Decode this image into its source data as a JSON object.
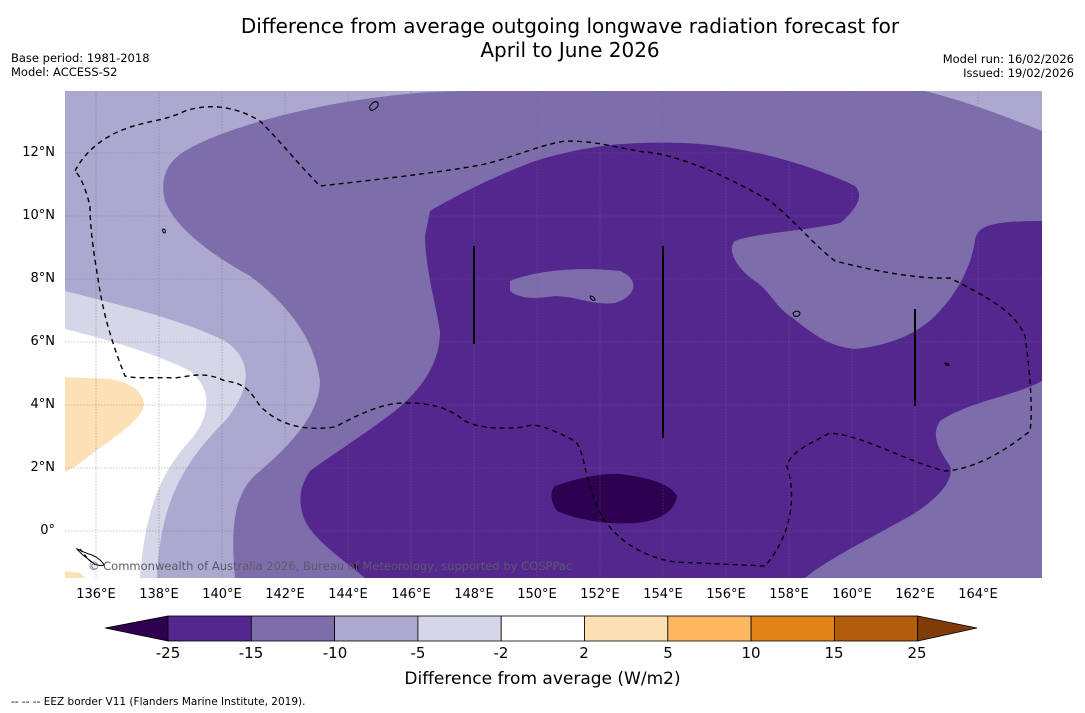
{
  "title_line1": "Difference from average outgoing longwave radiation forecast for",
  "title_line2": "April to June 2026",
  "meta_left": {
    "base_period": "Base period: 1981-2018",
    "model": "Model: ACCESS-S2"
  },
  "meta_right": {
    "model_run": "Model run: 16/02/2026",
    "issued": "Issued: 19/02/2026"
  },
  "axes": {
    "y_ticks": [
      "12°N",
      "10°N",
      "8°N",
      "6°N",
      "4°N",
      "2°N",
      "0°"
    ],
    "x_ticks": [
      "136°E",
      "138°E",
      "140°E",
      "142°E",
      "144°E",
      "146°E",
      "148°E",
      "150°E",
      "152°E",
      "154°E",
      "156°E",
      "158°E",
      "160°E",
      "162°E",
      "164°E"
    ]
  },
  "copyright": "© Commonwealth of Australia 2026, Bureau of Meteorology, supported by COSPPac",
  "legend": {
    "labels": [
      "-25",
      "-15",
      "-10",
      "-5",
      "-2",
      "2",
      "5",
      "10",
      "15",
      "25"
    ],
    "colors": {
      "lt_neg25": "#2d0050",
      "neg25_neg15": "#54278f",
      "neg15_neg10": "#7d6eab",
      "neg10_neg5": "#aca8cf",
      "neg5_neg2": "#d6d6e9",
      "neg2_2": "#ffffff",
      "2_5": "#fde0b6",
      "5_10": "#fdb761",
      "10_15": "#e08218",
      "15_25": "#b25c0d",
      "gt_25": "#7f3b08"
    },
    "title": "Difference from average (W/m2)"
  },
  "footer": "--  --  -- EEZ border V11 (Flanders Marine Institute, 2019)."
}
